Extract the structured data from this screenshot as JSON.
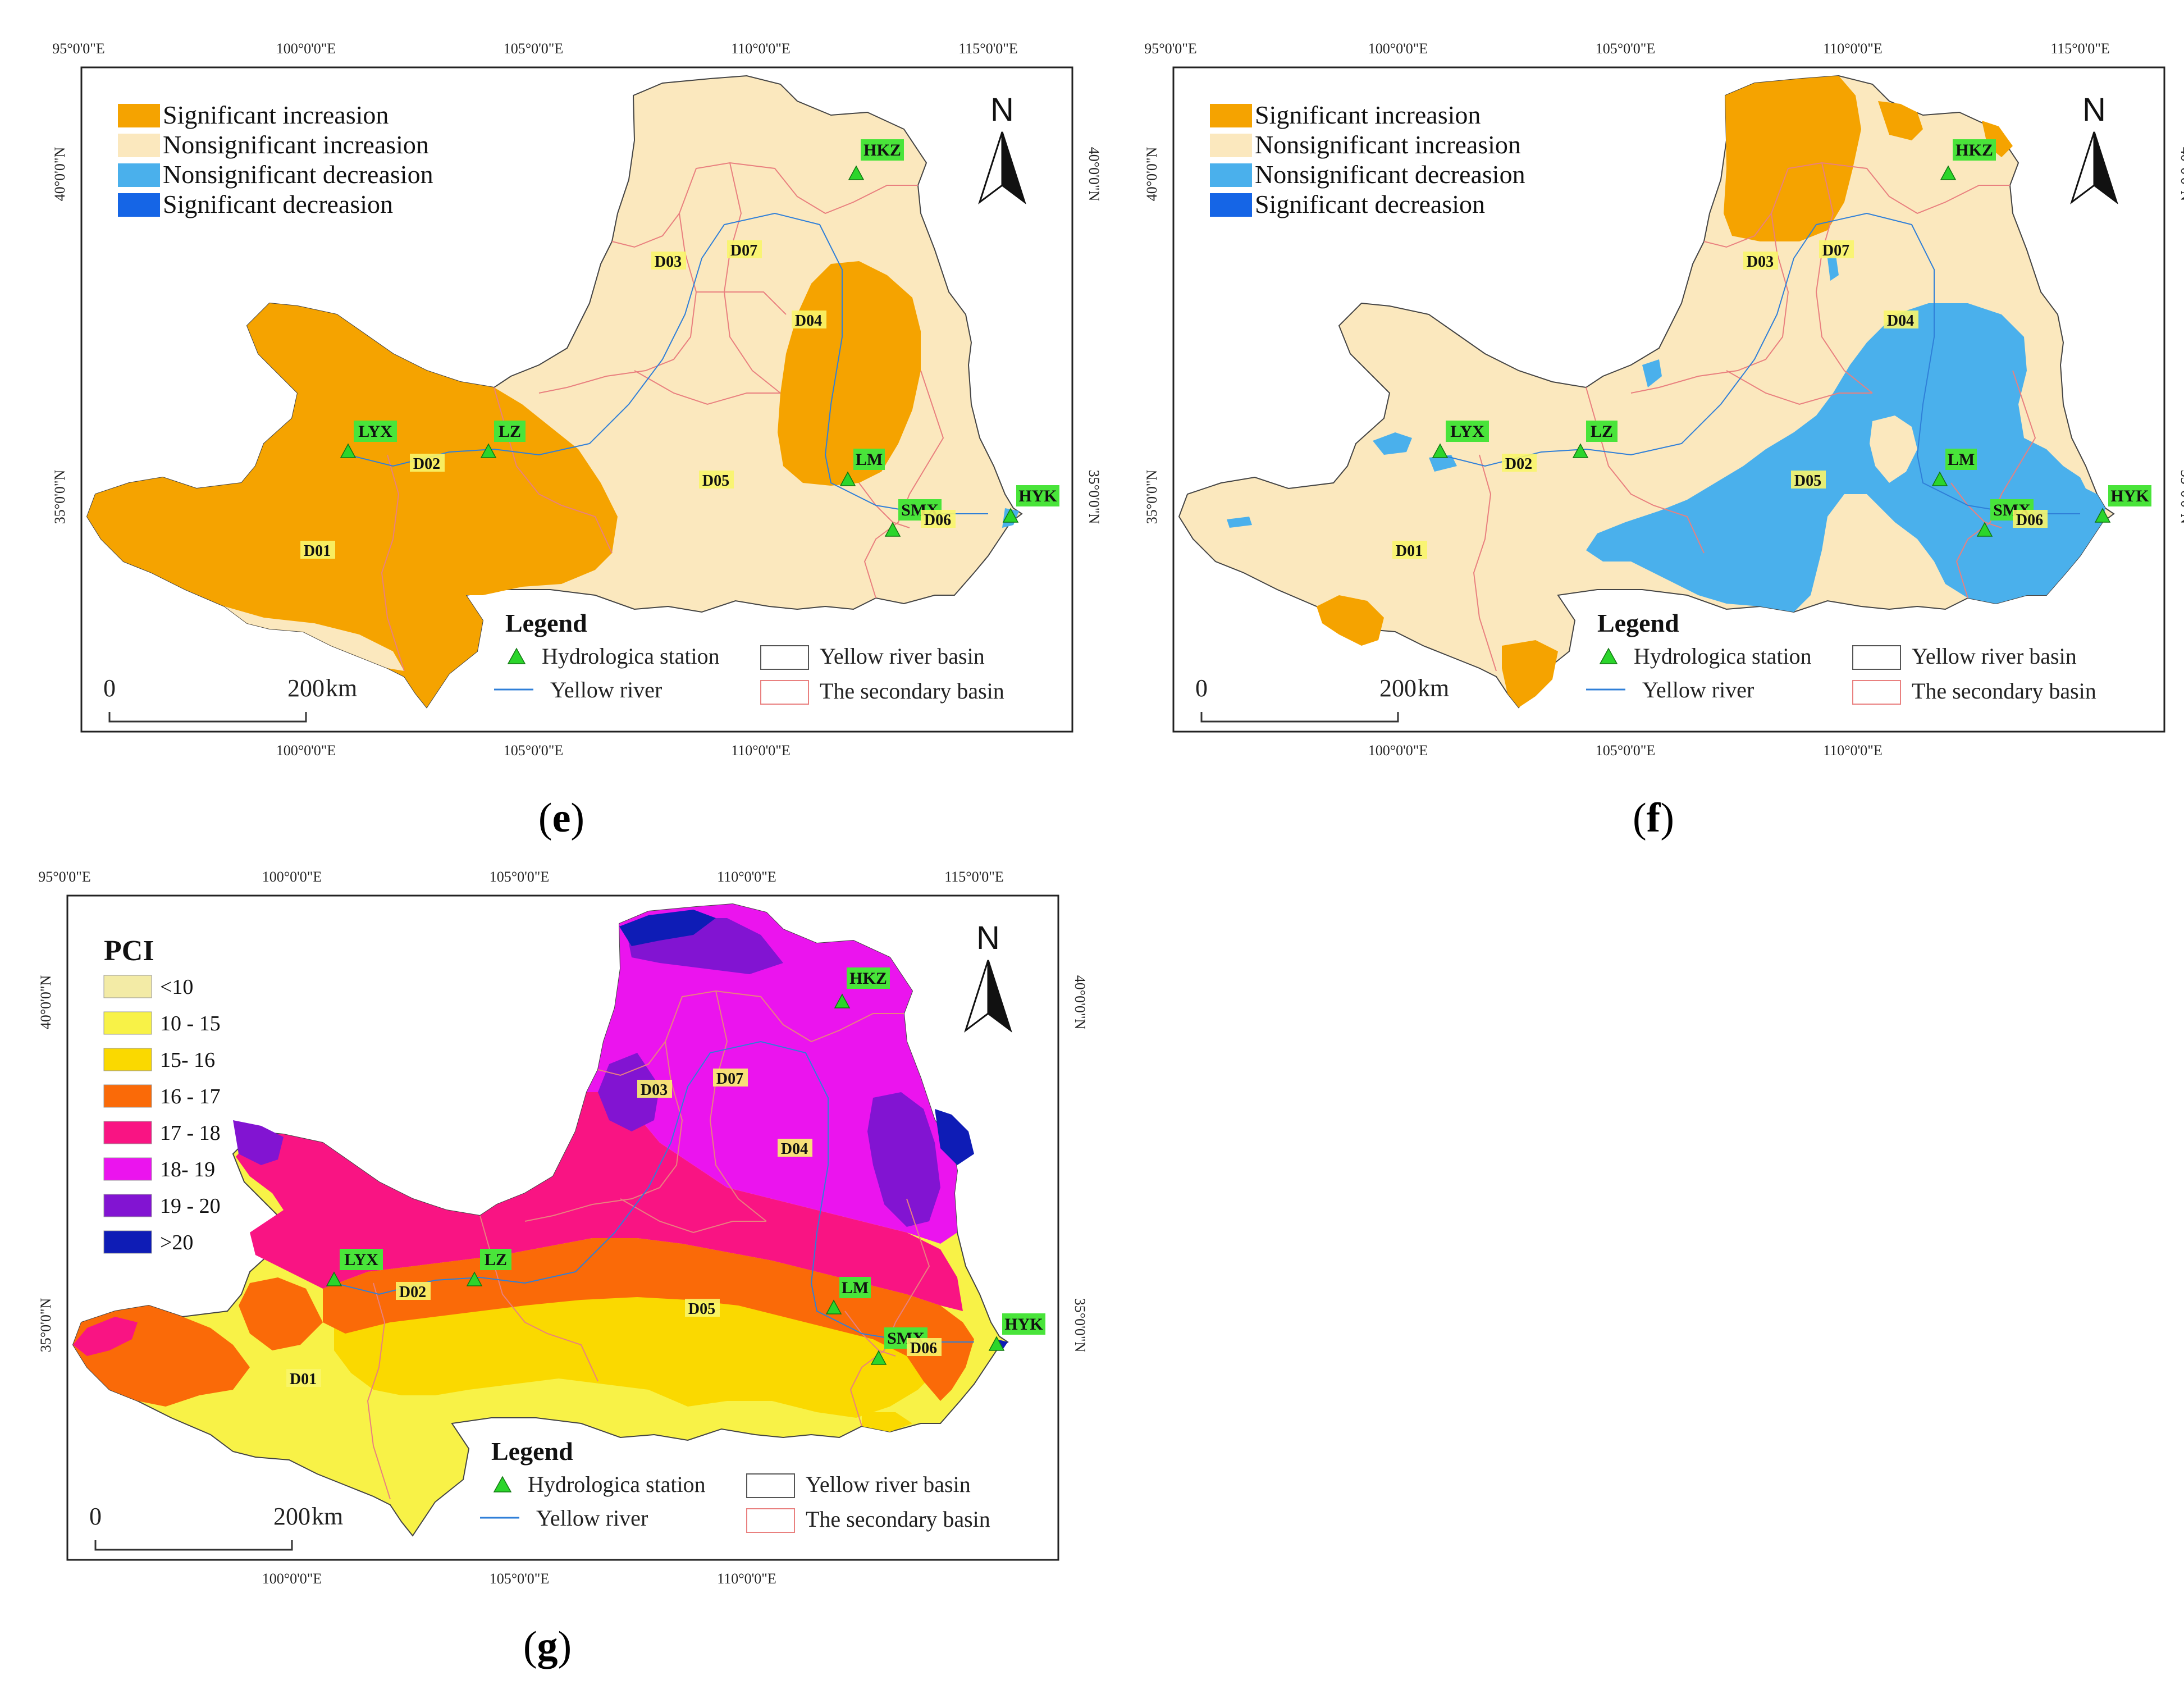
{
  "coords": {
    "top_lon": [
      "95°0'0\"E",
      "100°0'0\"E",
      "105°0'0\"E",
      "110°0'0\"E",
      "115°0'0\"E"
    ],
    "bottom_lon": [
      "100°0'0\"E",
      "105°0'0\"E",
      "110°0'0\"E"
    ],
    "lat": [
      "40°0'0\"N",
      "35°0'0\"N"
    ]
  },
  "north_letter": "N",
  "scale": {
    "zero": "0",
    "value": "200",
    "unit": "km"
  },
  "basins": [
    "D01",
    "D02",
    "D03",
    "D04",
    "D05",
    "D06",
    "D07"
  ],
  "stations": [
    "LYX",
    "LZ",
    "LM",
    "SMX",
    "HYK",
    "HKZ"
  ],
  "legend_common": {
    "title": "Legend",
    "hydro_station": "Hydrologica station",
    "yellow_river_basin": "Yellow river basin",
    "yellow_river": "Yellow river",
    "secondary_basin": "The secondary basin"
  },
  "trend_legend": [
    {
      "label": "Significant increasion",
      "color": "#F5A300"
    },
    {
      "label": "Nonsignificant increasion",
      "color": "#FBE8BE"
    },
    {
      "label": "Nonsignificant decreasion",
      "color": "#4AB0EC"
    },
    {
      "label": "Significant decreasion",
      "color": "#1565E6"
    }
  ],
  "pci_legend": {
    "title": "PCI",
    "classes": [
      {
        "label": "<10",
        "color": "#F3EBA6"
      },
      {
        "label": "10 - 15",
        "color": "#F8F247"
      },
      {
        "label": "15- 16",
        "color": "#FAD900"
      },
      {
        "label": "16 - 17",
        "color": "#FA6A08"
      },
      {
        "label": "17 - 18",
        "color": "#F91483"
      },
      {
        "label": "18- 19",
        "color": "#EB14EE"
      },
      {
        "label": "19 - 20",
        "color": "#8214D2"
      },
      {
        "label": ">20",
        "color": "#0E1CB6"
      }
    ]
  },
  "panels": [
    {
      "id": "e",
      "caption": "e"
    },
    {
      "id": "f",
      "caption": "f"
    },
    {
      "id": "g",
      "caption": "g"
    }
  ],
  "colors": {
    "station_marker": "#2BD52B",
    "station_label_bg": "#49E43A",
    "basin_label_bg": "#F8F56A",
    "secondary_basin_line": "#E9807F",
    "river_line": "#2F7FD8"
  }
}
